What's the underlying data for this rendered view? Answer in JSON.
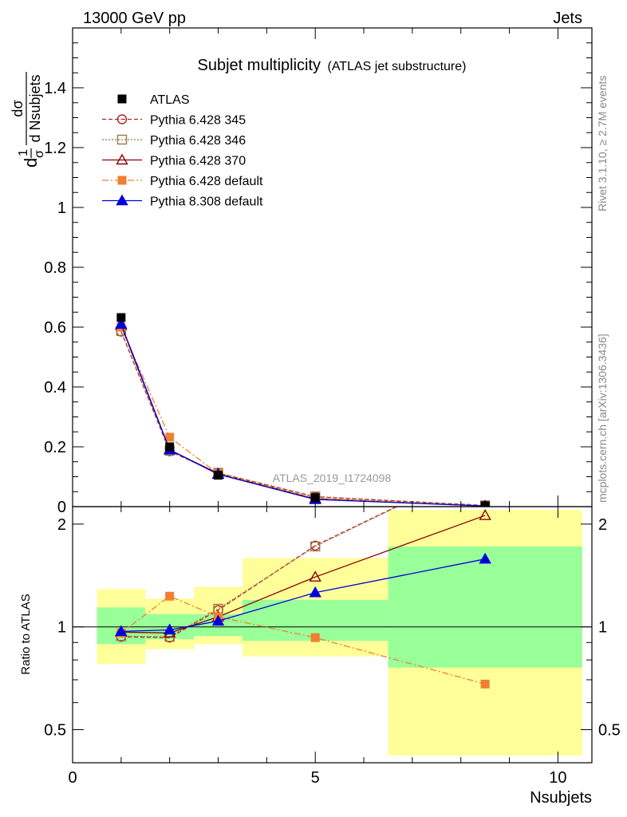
{
  "header": {
    "left": "13000 GeV pp",
    "right": "Jets"
  },
  "side_text": {
    "rivet": "Rivet 3.1.10, ≥ 2.7M events",
    "mcplots": "mcplots.cern.ch [arXiv:1306.3436]"
  },
  "chart_data": {
    "type": "line",
    "title": "Subjet multiplicity",
    "subtitle": "(ATLAS jet substructure)",
    "watermark": "ATLAS_2019_I1724098",
    "xlabel": "Nsubjets",
    "ylabel_main": {
      "prefix": "1",
      "sigma": "σ",
      "d": "d",
      "num": "dσ",
      "den": "d Nsubjets"
    },
    "ylabel_ratio": "Ratio to ATLAS",
    "xlim": [
      0,
      10.7
    ],
    "x_ticks": [
      "0",
      "5",
      "10"
    ],
    "main_ylim": [
      0,
      1.6
    ],
    "main_y_ticks": [
      "0",
      "0.2",
      "0.4",
      "0.6",
      "0.8",
      "1",
      "1.2",
      "1.4"
    ],
    "ratio_ylim": [
      0.4,
      2.25
    ],
    "ratio_y_ticks": [
      "0.5",
      "1",
      "2"
    ],
    "ratio_reference": 1,
    "bins": [
      [
        0.5,
        1.5
      ],
      [
        1.5,
        2.5
      ],
      [
        2.5,
        3.5
      ],
      [
        3.5,
        6.5
      ],
      [
        6.5,
        10.5
      ]
    ],
    "x": [
      1,
      2,
      3,
      5,
      8.5
    ],
    "data": {
      "name": "ATLAS",
      "color": "#000000",
      "marker": "square-filled",
      "values": [
        0.632,
        0.2,
        0.105,
        0.03,
        0.003
      ],
      "band_inner": [
        [
          0.89,
          1.14
        ],
        [
          0.92,
          1.09
        ],
        [
          0.94,
          1.09
        ],
        [
          0.91,
          1.2
        ],
        [
          0.76,
          1.72
        ]
      ],
      "band_outer": [
        [
          0.78,
          1.29
        ],
        [
          0.86,
          1.21
        ],
        [
          0.89,
          1.31
        ],
        [
          0.82,
          1.59
        ],
        [
          0.42,
          2.2
        ]
      ],
      "band_inner_color": "#99ff99",
      "band_outer_color": "#ffff99"
    },
    "series": [
      {
        "name": "Pythia 6.428 345",
        "color": "#b22222",
        "marker": "circle-open",
        "dash": "5,3",
        "values": [
          0.585,
          0.185,
          0.112,
          0.033,
          0.004
        ],
        "ratio": [
          0.935,
          0.93,
          1.12,
          1.73,
          3.0
        ]
      },
      {
        "name": "Pythia 6.428 346",
        "color": "#a0744a",
        "marker": "square-open",
        "dash": "2,2",
        "values": [
          0.587,
          0.187,
          0.113,
          0.034,
          0.004
        ],
        "ratio": [
          0.94,
          0.935,
          1.13,
          1.72,
          3.0
        ]
      },
      {
        "name": "Pythia 6.428 370",
        "color": "#8b0000",
        "marker": "triangle-open",
        "dash": "",
        "values": [
          0.605,
          0.19,
          0.11,
          0.027,
          0.002
        ],
        "ratio": [
          0.965,
          0.96,
          1.07,
          1.4,
          2.12
        ]
      },
      {
        "name": "Pythia 6.428 default",
        "color": "#f08030",
        "marker": "square-filled",
        "dash": "8,3,2,3",
        "values": [
          0.6,
          0.232,
          0.11,
          0.028,
          0.002
        ],
        "ratio": [
          0.96,
          1.23,
          1.07,
          0.93,
          0.68
        ]
      },
      {
        "name": "Pythia 8.308 default",
        "color": "#0000dd",
        "marker": "triangle-filled",
        "dash": "",
        "values": [
          0.61,
          0.19,
          0.108,
          0.024,
          0.002
        ],
        "ratio": [
          0.97,
          0.98,
          1.04,
          1.26,
          1.58
        ]
      }
    ]
  }
}
